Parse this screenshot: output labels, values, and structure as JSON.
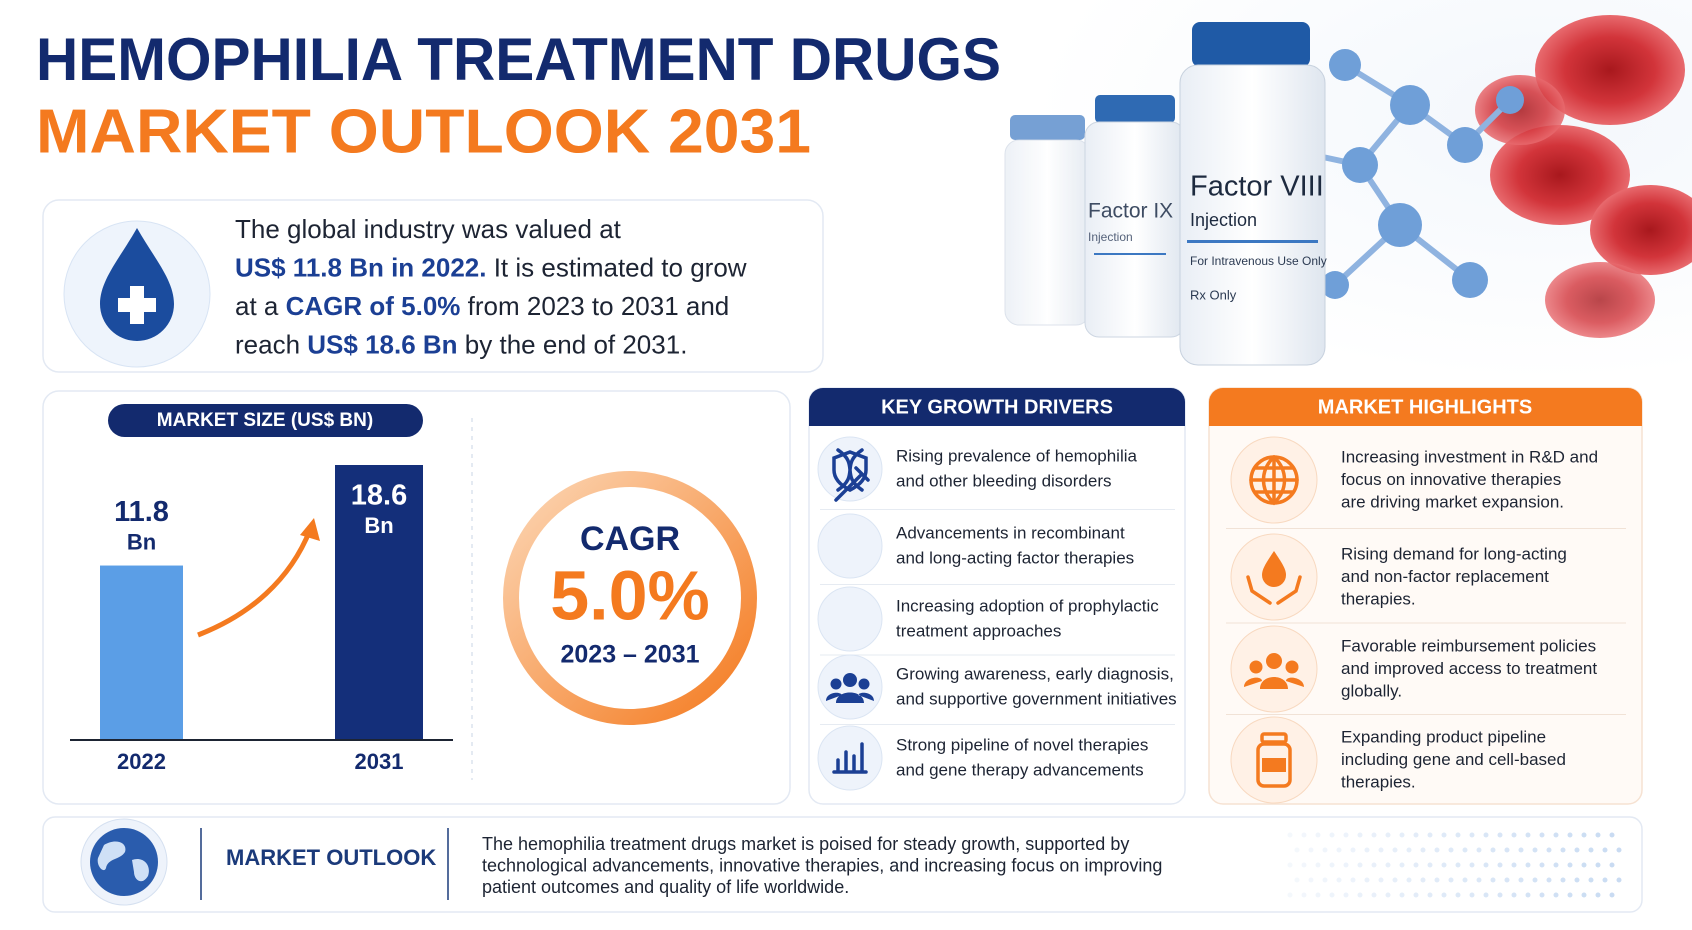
{
  "header": {
    "title_line1": "HEMOPHILIA TREATMENT DRUGS",
    "title_line2": "MARKET OUTLOOK 2031"
  },
  "intro": {
    "lines": [
      [
        {
          "text": "The global industry was valued at",
          "bold": false
        }
      ],
      [
        {
          "text": "US$ 11.8 Bn in 2022.",
          "bold": true
        },
        {
          "text": " It is estimated to grow",
          "bold": false
        }
      ],
      [
        {
          "text": "at a ",
          "bold": false
        },
        {
          "text": "CAGR of 5.0%",
          "bold": true
        },
        {
          "text": " from 2023 to 2031 and",
          "bold": false
        }
      ],
      [
        {
          "text": "reach ",
          "bold": false
        },
        {
          "text": "US$ 18.6 Bn",
          "bold": true
        },
        {
          "text": " by the end of 2031.",
          "bold": false
        }
      ]
    ]
  },
  "hero_image": {
    "vial_main": "Factor VIII",
    "vial_main_sub": "Injection",
    "vial_main_note": "For Intravenous Use Only",
    "vial_main_rx": "Rx Only",
    "vial_second": "Factor IX",
    "vial_second_sub": "Injection"
  },
  "chart_data": {
    "type": "bar",
    "title": "MARKET SIZE (US$ BN)",
    "categories": [
      "2022",
      "2031"
    ],
    "values": [
      11.8,
      18.6
    ],
    "unit": "Bn",
    "colors": [
      "#5b9ee6",
      "#142f7a"
    ]
  },
  "cagr": {
    "title": "CAGR",
    "value": 5.0,
    "value_label": "5.0%",
    "period": "2023 – 2031"
  },
  "drivers": {
    "title": "KEY GROWTH DRIVERS",
    "items": [
      [
        "Rising prevalence of hemophilia",
        "and other bleeding disorders"
      ],
      [
        "Advancements in recombinant",
        "and long-acting factor therapies"
      ],
      [
        "Increasing adoption of prophylactic",
        "treatment approaches"
      ],
      [
        "Growing awareness, early diagnosis,",
        "and supportive government initiatives"
      ],
      [
        "Strong pipeline of novel therapies",
        "and gene therapy advancements"
      ]
    ]
  },
  "highlights": {
    "title": "MARKET HIGHLIGHTS",
    "items": [
      [
        "Increasing investment in R&D and",
        "focus on innovative therapies",
        "are driving market expansion."
      ],
      [
        "Rising demand for long-acting",
        "and non-factor replacement",
        "therapies."
      ],
      [
        "Favorable reimbursement policies",
        "and improved access to treatment",
        "globally."
      ],
      [
        "Expanding product pipeline",
        "including gene and cell-based",
        "therapies."
      ]
    ]
  },
  "outlook": {
    "title": "MARKET OUTLOOK",
    "lines": [
      "The hemophilia treatment drugs market is poised for steady growth, supported by",
      "technological advancements, innovative therapies, and increasing focus on improving",
      "patient outcomes and quality of life worldwide."
    ]
  }
}
